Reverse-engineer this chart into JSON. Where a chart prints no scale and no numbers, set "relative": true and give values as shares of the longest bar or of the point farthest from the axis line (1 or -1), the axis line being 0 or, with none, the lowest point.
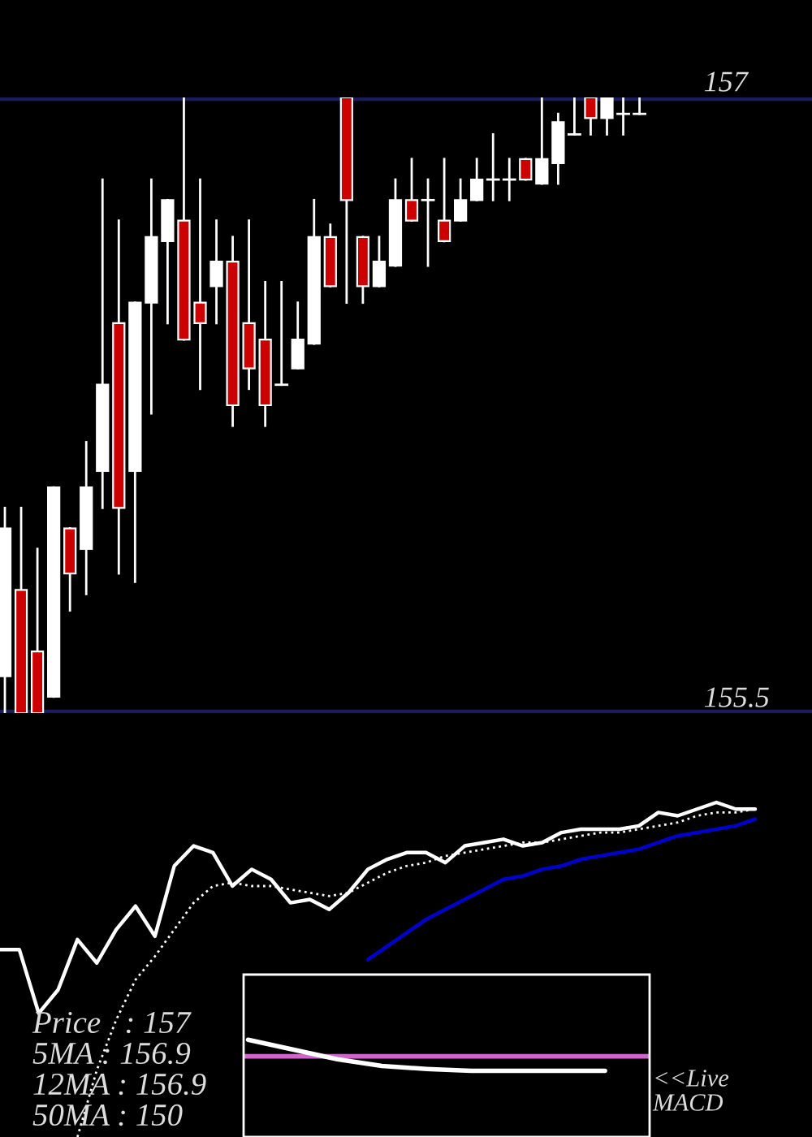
{
  "chart_data": [
    {
      "type": "candlestick",
      "categories": [
        null,
        null,
        null,
        null,
        null,
        null,
        null,
        null,
        null,
        null,
        null,
        null,
        null,
        null,
        null,
        null,
        null,
        null,
        null,
        null,
        null,
        null,
        null,
        null,
        null,
        null,
        null,
        null,
        null,
        null,
        null,
        null,
        null,
        null,
        null,
        null,
        null,
        null,
        null,
        null
      ],
      "ohlc": [
        [
          155.59,
          156.0,
          155.5,
          155.95
        ],
        [
          155.8,
          156.0,
          155.5,
          155.5
        ],
        [
          155.65,
          155.9,
          155.5,
          155.5
        ],
        [
          155.54,
          156.05,
          155.54,
          156.05
        ],
        [
          155.95,
          155.95,
          155.75,
          155.84
        ],
        [
          155.9,
          156.16,
          155.79,
          156.05
        ],
        [
          156.09,
          156.8,
          156.0,
          156.3
        ],
        [
          156.45,
          156.7,
          155.84,
          156.0
        ],
        [
          156.09,
          156.5,
          155.82,
          156.5
        ],
        [
          156.5,
          156.8,
          156.23,
          156.66
        ],
        [
          156.65,
          156.75,
          156.45,
          156.75
        ],
        [
          156.7,
          157.0,
          156.41,
          156.41
        ],
        [
          156.5,
          156.8,
          156.29,
          156.45
        ],
        [
          156.54,
          156.7,
          156.45,
          156.6
        ],
        [
          156.6,
          156.66,
          156.2,
          156.25
        ],
        [
          156.45,
          156.7,
          156.29,
          156.34
        ],
        [
          156.41,
          156.55,
          156.2,
          156.25
        ],
        [
          156.3,
          156.55,
          156.3,
          156.3
        ],
        [
          156.34,
          156.5,
          156.34,
          156.41
        ],
        [
          156.4,
          156.75,
          156.4,
          156.66
        ],
        [
          156.66,
          156.69,
          156.54,
          156.54
        ],
        [
          157.0,
          157.0,
          156.5,
          156.75
        ],
        [
          156.66,
          156.66,
          156.5,
          156.54
        ],
        [
          156.54,
          156.66,
          156.54,
          156.6
        ],
        [
          156.59,
          156.8,
          156.59,
          156.75
        ],
        [
          156.75,
          156.85,
          156.7,
          156.7
        ],
        [
          156.75,
          156.8,
          156.59,
          156.75
        ],
        [
          156.7,
          156.85,
          156.65,
          156.65
        ],
        [
          156.7,
          156.8,
          156.7,
          156.75
        ],
        [
          156.75,
          156.85,
          156.75,
          156.8
        ],
        [
          156.8,
          156.91,
          156.75,
          156.8
        ],
        [
          156.8,
          156.85,
          156.75,
          156.8
        ],
        [
          156.85,
          156.85,
          156.8,
          156.8
        ],
        [
          156.79,
          157.0,
          156.79,
          156.85
        ],
        [
          156.84,
          156.96,
          156.79,
          156.94
        ],
        [
          156.91,
          157.0,
          156.91,
          156.91
        ],
        [
          157.0,
          157.0,
          156.91,
          156.95
        ],
        [
          156.95,
          157.0,
          156.91,
          157.0
        ],
        [
          156.96,
          157.0,
          156.91,
          156.96
        ],
        [
          156.96,
          157.0,
          156.96,
          156.96
        ]
      ],
      "colors": [
        "#ffffff",
        "#cc0000",
        "#cc0000",
        "#ffffff",
        "#cc0000",
        "#ffffff",
        "#ffffff",
        "#cc0000",
        "#ffffff",
        "#ffffff",
        "#ffffff",
        "#cc0000",
        "#cc0000",
        "#ffffff",
        "#cc0000",
        "#cc0000",
        "#cc0000",
        "#ffffff",
        "#ffffff",
        "#ffffff",
        "#cc0000",
        "#cc0000",
        "#cc0000",
        "#ffffff",
        "#ffffff",
        "#cc0000",
        "#ffffff",
        "#cc0000",
        "#ffffff",
        "#ffffff",
        "#ffffff",
        "#ffffff",
        "#cc0000",
        "#ffffff",
        "#ffffff",
        "#ffffff",
        "#cc0000",
        "#ffffff",
        "#ffffff",
        "#ffffff"
      ],
      "ylim": [
        155.5,
        157
      ],
      "yticks": [
        155.5,
        157
      ],
      "grid": "y",
      "tick_labels": "y"
    },
    {
      "type": "line",
      "relative": true,
      "categories": [
        null,
        null,
        null,
        null,
        null,
        null,
        null,
        null,
        null,
        null,
        null,
        null,
        null,
        null,
        null,
        null,
        null,
        null,
        null,
        null,
        null,
        null,
        null,
        null,
        null,
        null,
        null,
        null,
        null,
        null,
        null,
        null,
        null,
        null,
        null,
        null,
        null,
        null,
        null,
        null
      ],
      "series": [
        {
          "color": "#ffffff",
          "values": [
            0.56,
            0.56,
            0.37,
            0.44,
            0.59,
            0.52,
            0.62,
            0.69,
            0.6,
            0.81,
            0.87,
            0.85,
            0.75,
            0.8,
            0.77,
            0.7,
            0.71,
            0.68,
            0.73,
            0.8,
            0.83,
            0.85,
            0.85,
            0.82,
            0.87,
            0.88,
            0.89,
            0.87,
            0.88,
            0.91,
            0.92,
            0.92,
            0.92,
            0.93,
            0.97,
            0.96,
            0.98,
            1.0,
            0.98,
            0.98
          ]
        },
        {
          "color": "#ffffff",
          "line_style": "dotted",
          "values": [
            null,
            null,
            null,
            null,
            0.0,
            0.2,
            0.35,
            0.47,
            0.54,
            0.62,
            0.7,
            0.75,
            0.76,
            0.75,
            0.75,
            0.74,
            0.73,
            0.72,
            0.73,
            0.76,
            0.79,
            0.81,
            0.82,
            0.84,
            0.85,
            0.86,
            0.87,
            0.88,
            0.88,
            0.89,
            0.9,
            0.91,
            0.91,
            0.92,
            0.93,
            0.94,
            0.96,
            0.97,
            0.97,
            0.98
          ]
        },
        {
          "color": "#0000cc",
          "values": [
            null,
            null,
            null,
            null,
            null,
            null,
            null,
            null,
            null,
            null,
            null,
            null,
            null,
            null,
            null,
            null,
            null,
            null,
            null,
            0.53,
            0.57,
            0.61,
            0.65,
            0.68,
            0.71,
            0.74,
            0.77,
            0.78,
            0.8,
            0.81,
            0.83,
            0.84,
            0.85,
            0.86,
            0.88,
            0.9,
            0.91,
            0.92,
            0.93,
            0.95
          ]
        }
      ],
      "annotations": [
        "Price   : 157",
        "5MA : 156.9",
        "12MA : 156.9",
        "50MA : 150"
      ]
    },
    {
      "type": "line",
      "relative": true,
      "categories": [
        null,
        null,
        null,
        null,
        null,
        null,
        null,
        null,
        null
      ],
      "series": [
        {
          "color": "#ffffff",
          "values": [
            1,
            0.9,
            0.8,
            0.73,
            0.7,
            0.68,
            0.68,
            0.68,
            0.68
          ]
        }
      ],
      "ref_lines": [
        {
          "axis": "y",
          "value": 0.83,
          "color": "#cc66cc"
        }
      ],
      "annotations": [
        "<<Live",
        "MACD"
      ]
    }
  ]
}
